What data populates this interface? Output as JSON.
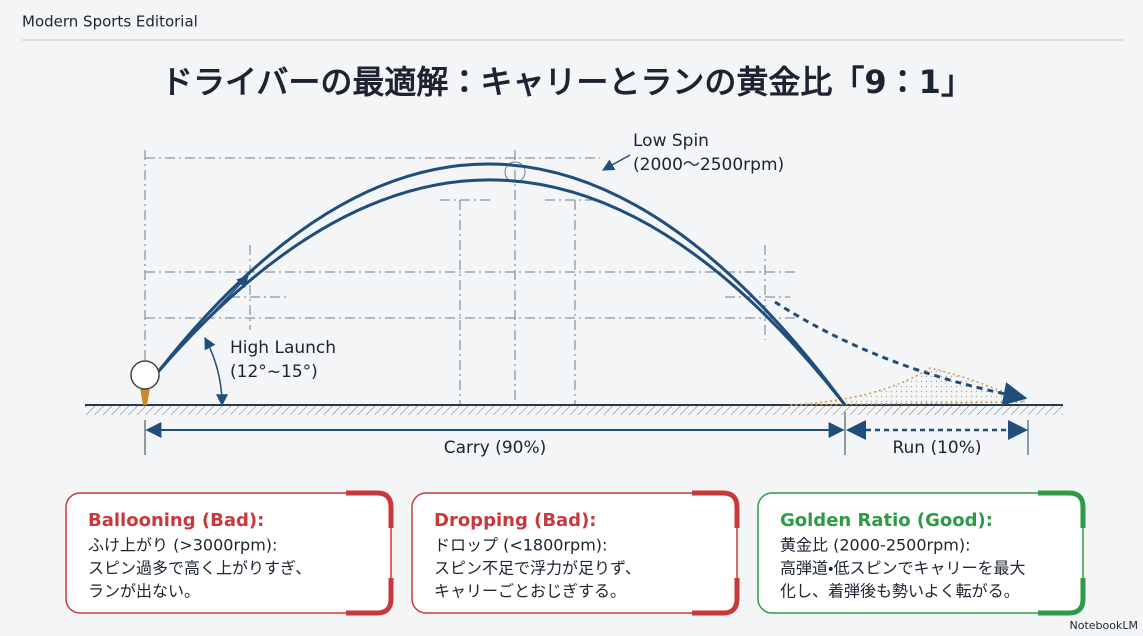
{
  "header": {
    "brand": "Modern Sports Editorial",
    "title": "ドライバーの最適解：キャリーとランの黄金比「9：1」"
  },
  "diagram": {
    "low_spin": [
      "Low Spin",
      "(2000〜2500rpm)"
    ],
    "high_launch": [
      "High Launch",
      "(12°~15°)"
    ],
    "carry": "Carry (90%)",
    "run": "Run (10%)"
  },
  "cards": [
    {
      "heading": "Ballooning (Bad):",
      "lines": [
        "ふけ上がり (>3000rpm):",
        "スピン過多で高く上がりすぎ、",
        "ランが出ない。"
      ]
    },
    {
      "heading": "Dropping (Bad):",
      "lines": [
        "ドロップ (<1800rpm):",
        "スピン不足で浮力が足りず、",
        "キャリーごとおじぎする。"
      ]
    },
    {
      "heading": "Golden Ratio (Good):",
      "lines": [
        "黄金比 (2000-2500rpm):",
        "高弾道・低スピンでキャリーを最大",
        "化し、着弾後も勢いよく転がる。"
      ]
    }
  ],
  "footer": "NotebookLM"
}
